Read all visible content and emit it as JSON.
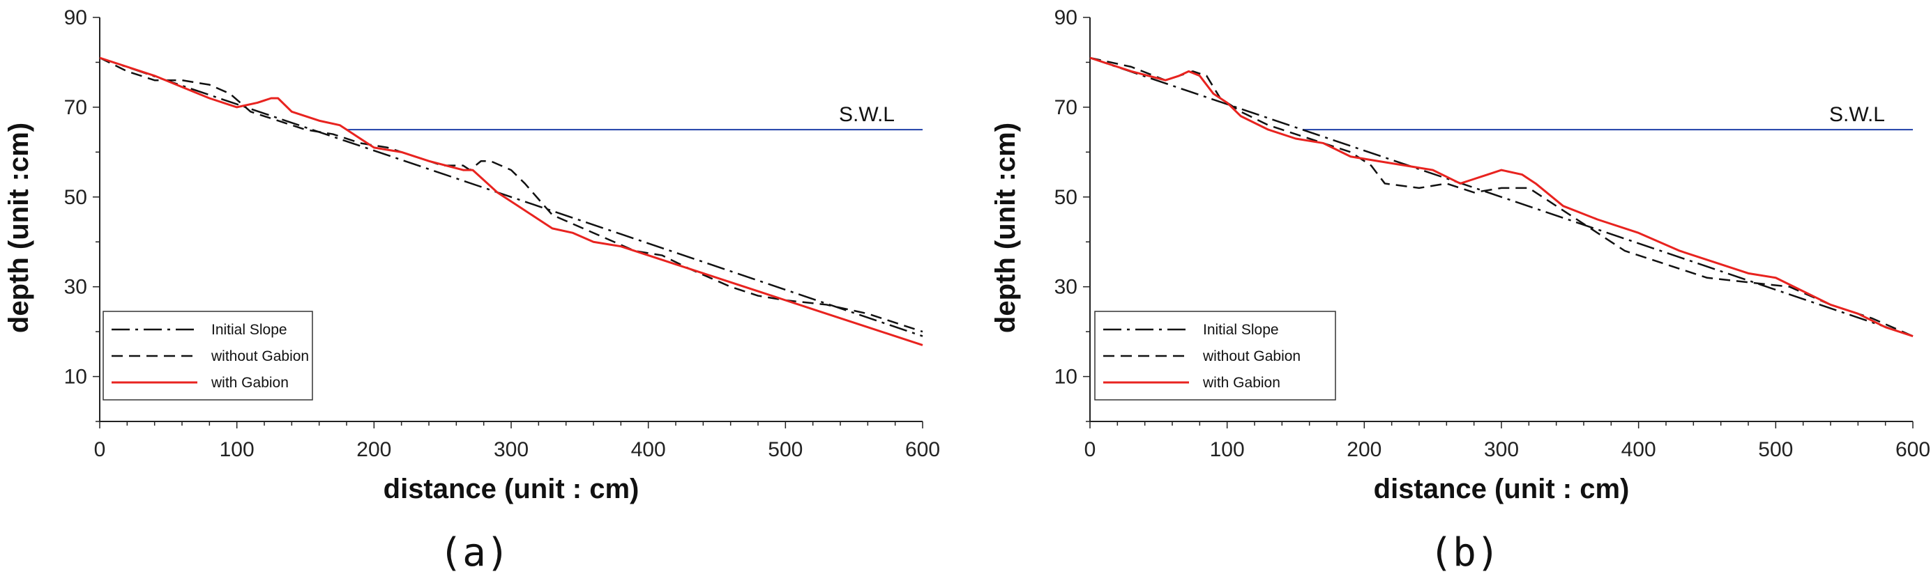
{
  "chart_data": [
    {
      "type": "line",
      "panel_label": "(a)",
      "xlabel": "distance (unit : cm)",
      "ylabel": "depth (unit :cm)",
      "xlim": [
        0,
        600
      ],
      "ylim": [
        0,
        90
      ],
      "x_ticks": [
        "0",
        "100",
        "200",
        "300",
        "400",
        "500",
        "600"
      ],
      "y_ticks": [
        "10",
        "30",
        "50",
        "70",
        "90"
      ],
      "grid": false,
      "legend_position": "bottom-left",
      "reference_line": {
        "label": "S.W.L",
        "y": 65,
        "x": [
          180,
          600
        ],
        "color": "#1f3fa8"
      },
      "series": [
        {
          "name": "Initial Slope",
          "style": "dashdot",
          "color": "#111111",
          "x": [
            0,
            600
          ],
          "y": [
            81,
            19
          ]
        },
        {
          "name": "without Gabion",
          "style": "dashed",
          "color": "#111111",
          "x": [
            0,
            20,
            40,
            60,
            80,
            95,
            110,
            130,
            150,
            170,
            190,
            210,
            230,
            250,
            265,
            270,
            278,
            285,
            300,
            310,
            330,
            360,
            390,
            410,
            430,
            460,
            480,
            500,
            530,
            560,
            600
          ],
          "y": [
            81,
            78,
            76,
            76,
            75,
            73,
            69,
            67,
            65,
            64,
            62,
            61,
            59,
            57,
            57,
            56,
            58,
            58,
            56,
            53,
            46,
            42,
            38,
            37,
            34,
            30,
            28,
            27,
            26,
            24,
            20
          ]
        },
        {
          "name": "with Gabion",
          "style": "solid",
          "color": "#e8231f",
          "x": [
            0,
            40,
            80,
            100,
            115,
            125,
            130,
            140,
            160,
            175,
            185,
            200,
            220,
            240,
            265,
            272,
            290,
            305,
            320,
            330,
            345,
            360,
            380,
            400,
            420,
            440,
            460,
            480,
            500,
            520,
            540,
            560,
            580,
            600
          ],
          "y": [
            81,
            77,
            72,
            70,
            71,
            72,
            72,
            69,
            67,
            66,
            64,
            61,
            60,
            58,
            56,
            56,
            51,
            48,
            45,
            43,
            42,
            40,
            39,
            37,
            35,
            33,
            31,
            29,
            27,
            25,
            23,
            21,
            19,
            17
          ]
        }
      ]
    },
    {
      "type": "line",
      "panel_label": "(b)",
      "xlabel": "distance (unit : cm)",
      "ylabel": "depth (unit :cm)",
      "xlim": [
        0,
        600
      ],
      "ylim": [
        0,
        90
      ],
      "x_ticks": [
        "0",
        "100",
        "200",
        "300",
        "400",
        "500",
        "600"
      ],
      "y_ticks": [
        "10",
        "30",
        "50",
        "70",
        "90"
      ],
      "grid": false,
      "legend_position": "bottom-left",
      "reference_line": {
        "label": "S.W.L",
        "y": 65,
        "x": [
          155,
          600
        ],
        "color": "#1f3fa8"
      },
      "series": [
        {
          "name": "Initial Slope",
          "style": "dashdot",
          "color": "#111111",
          "x": [
            0,
            600
          ],
          "y": [
            81,
            19
          ]
        },
        {
          "name": "without Gabion",
          "style": "dashed",
          "color": "#111111",
          "x": [
            0,
            30,
            55,
            65,
            75,
            85,
            95,
            110,
            130,
            160,
            190,
            205,
            215,
            240,
            260,
            280,
            300,
            320,
            335,
            360,
            390,
            420,
            450,
            480,
            510,
            540,
            570,
            600
          ],
          "y": [
            81,
            79,
            76,
            77,
            78,
            77,
            72,
            69,
            66,
            63,
            60,
            57,
            53,
            52,
            53,
            51,
            52,
            52,
            49,
            44,
            38,
            35,
            32,
            31,
            30,
            26,
            23,
            19
          ]
        },
        {
          "name": "with Gabion",
          "style": "solid",
          "color": "#e8231f",
          "x": [
            0,
            30,
            55,
            65,
            72,
            80,
            90,
            100,
            110,
            130,
            150,
            170,
            190,
            210,
            230,
            250,
            270,
            280,
            290,
            300,
            315,
            325,
            345,
            370,
            400,
            430,
            460,
            480,
            500,
            520,
            540,
            560,
            580,
            600
          ],
          "y": [
            81,
            78,
            76,
            77,
            78,
            77,
            73,
            71,
            68,
            65,
            63,
            62,
            59,
            58,
            57,
            56,
            53,
            54,
            55,
            56,
            55,
            53,
            48,
            45,
            42,
            38,
            35,
            33,
            32,
            29,
            26,
            24,
            21,
            19
          ]
        }
      ]
    }
  ]
}
